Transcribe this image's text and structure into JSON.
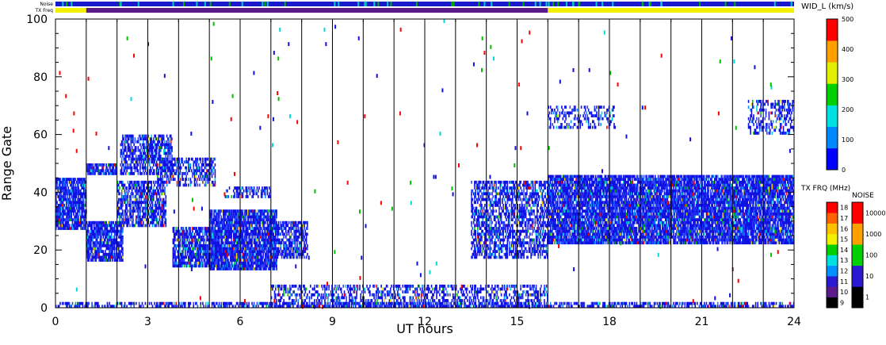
{
  "chart_data": {
    "type": "heatmap",
    "xlabel": "UT hours",
    "ylabel": "Range Gate",
    "xlim": [
      0,
      24
    ],
    "ylim": [
      0,
      100
    ],
    "xticks": [
      "0",
      "3",
      "6",
      "9",
      "12",
      "15",
      "18",
      "21",
      "24"
    ],
    "yticks": [
      "0",
      "20",
      "40",
      "60",
      "80",
      "100"
    ],
    "grid": "vertical lines every 1 UT hour",
    "top_bars": {
      "noise_label": "Noise",
      "txfreq_label": "TX Freq",
      "noise_color": "#1a1acd",
      "txfreq_segments": [
        {
          "start": 0,
          "end": 1,
          "color": "#f0f000"
        },
        {
          "start": 1,
          "end": 16,
          "color": "#5a1a8c"
        },
        {
          "start": 16,
          "end": 24,
          "color": "#f0f000"
        }
      ]
    },
    "colorbar_width": {
      "title": "WID_L (km/s)",
      "ticks": [
        "0",
        "100",
        "200",
        "300",
        "400",
        "500"
      ],
      "range": [
        0,
        500
      ],
      "colors": [
        "#0000ff",
        "#0088ff",
        "#00e0e0",
        "#00d000",
        "#e0f000",
        "#ffa000",
        "#ff0000"
      ]
    },
    "colorbar_txfreq": {
      "title": "TX FRQ (MHz)",
      "ticks": [
        "9",
        "10",
        "11",
        "12",
        "13",
        "14",
        "15",
        "16",
        "17",
        "18"
      ],
      "colors": [
        "#000000",
        "#5a1a8c",
        "#2a1ad2",
        "#0090ff",
        "#00e0e0",
        "#00d000",
        "#f0f000",
        "#ffc000",
        "#ff6000",
        "#ff0000"
      ]
    },
    "colorbar_noise": {
      "title": "NOISE",
      "ticks": [
        "1",
        "10",
        "100",
        "1000",
        "10000"
      ],
      "colors": [
        "#000000",
        "#2a1ad2",
        "#00d000",
        "#ffa000",
        "#ff0000"
      ]
    },
    "scatter_regions": [
      {
        "t0": 0.0,
        "t1": 1.0,
        "r0": 27,
        "r1": 45,
        "density": 0.85
      },
      {
        "t0": 1.0,
        "t1": 2.2,
        "r0": 16,
        "r1": 30,
        "density": 0.85
      },
      {
        "t0": 1.0,
        "t1": 2.0,
        "r0": 46,
        "r1": 50,
        "density": 0.8
      },
      {
        "t0": 2.0,
        "t1": 3.6,
        "r0": 28,
        "r1": 44,
        "density": 0.7
      },
      {
        "t0": 2.1,
        "t1": 3.8,
        "r0": 46,
        "r1": 60,
        "density": 0.65
      },
      {
        "t0": 3.3,
        "t1": 5.2,
        "r0": 42,
        "r1": 52,
        "density": 0.5
      },
      {
        "t0": 3.8,
        "t1": 5.0,
        "r0": 14,
        "r1": 28,
        "density": 0.8
      },
      {
        "t0": 5.0,
        "t1": 7.2,
        "r0": 13,
        "r1": 34,
        "density": 0.9
      },
      {
        "t0": 7.2,
        "t1": 8.2,
        "r0": 17,
        "r1": 30,
        "density": 0.7
      },
      {
        "t0": 5.5,
        "t1": 7.0,
        "r0": 38,
        "r1": 42,
        "density": 0.4
      },
      {
        "t0": 0.0,
        "t1": 24.0,
        "r0": 0,
        "r1": 1.5,
        "density": 0.55
      },
      {
        "t0": 7.0,
        "t1": 16.0,
        "r0": 0,
        "r1": 8,
        "density": 0.45
      },
      {
        "t0": 13.5,
        "t1": 16.0,
        "r0": 17,
        "r1": 44,
        "density": 0.6
      },
      {
        "t0": 16.0,
        "t1": 24.0,
        "r0": 22,
        "r1": 46,
        "density": 0.88
      },
      {
        "t0": 16.0,
        "t1": 18.2,
        "r0": 62,
        "r1": 70,
        "density": 0.35
      },
      {
        "t0": 22.5,
        "t1": 24.0,
        "r0": 60,
        "r1": 72,
        "density": 0.4
      }
    ],
    "noise_points_per_hour": 7
  }
}
